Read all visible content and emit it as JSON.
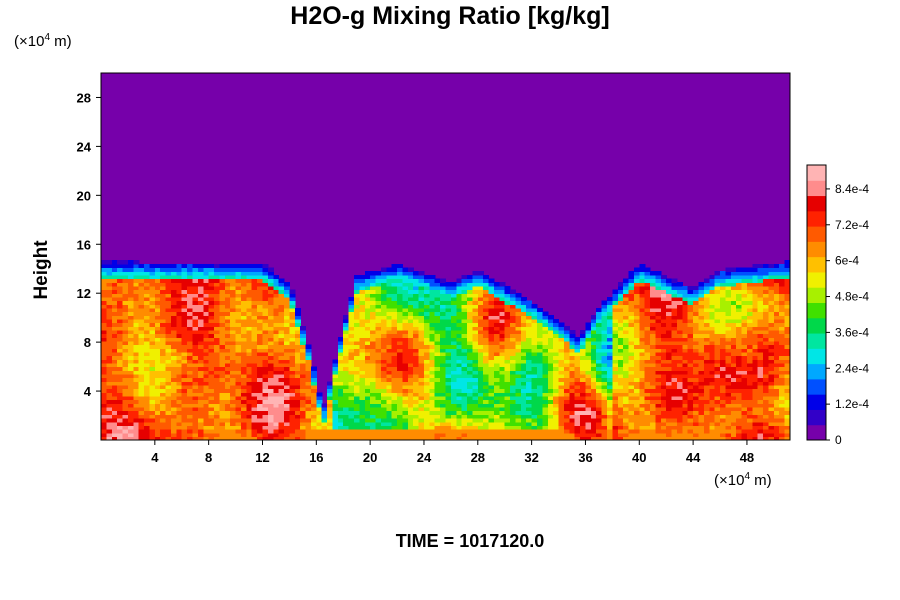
{
  "chart_data": {
    "type": "heatmap",
    "title": "H2O-g Mixing Ratio [kg/kg]",
    "ylabel": "Height",
    "y_unit": {
      "prefix": "(×10",
      "exp": "4",
      "suffix": " m)"
    },
    "x_unit": {
      "prefix": "(×10",
      "exp": "4",
      "suffix": " m)"
    },
    "xlim": [
      0,
      51.2
    ],
    "ylim": [
      0,
      30
    ],
    "x_ticks": [
      4,
      8,
      12,
      16,
      20,
      24,
      28,
      32,
      36,
      40,
      44,
      48
    ],
    "y_ticks": [
      4,
      8,
      12,
      16,
      20,
      24,
      28
    ],
    "field": {
      "value_range": [
        0,
        0.00092
      ],
      "background_value": 0,
      "layer_top_height": 14.2,
      "cloud_top_profile": [
        [
          0,
          14.2
        ],
        [
          12,
          14.0
        ],
        [
          14,
          12.5
        ],
        [
          15.5,
          7
        ],
        [
          16.5,
          2
        ],
        [
          18,
          9
        ],
        [
          19,
          13
        ],
        [
          22,
          14
        ],
        [
          26,
          12.5
        ],
        [
          28,
          13.5
        ],
        [
          32,
          11
        ],
        [
          34,
          9.5
        ],
        [
          35.5,
          8
        ],
        [
          37,
          10.5
        ],
        [
          40,
          14
        ],
        [
          44,
          12
        ],
        [
          46,
          13.5
        ],
        [
          51.2,
          14.2
        ]
      ]
    },
    "colorbar": {
      "labels": [
        "0",
        "1.2e-4",
        "2.4e-4",
        "3.6e-4",
        "4.8e-4",
        "6e-4",
        "7.2e-4",
        "8.4e-4"
      ],
      "label_values": [
        0,
        0.00012,
        0.00024,
        0.00036,
        0.00048,
        0.0006,
        0.00072,
        0.00084
      ],
      "min": 0,
      "max": 0.00092,
      "colors": [
        "#7600aa",
        "#3200c8",
        "#0000e8",
        "#0050ff",
        "#00a8ff",
        "#00e6e6",
        "#00e6a0",
        "#00d84a",
        "#40e000",
        "#a8f000",
        "#f0f000",
        "#ffc000",
        "#ff8c00",
        "#ff5a00",
        "#ff2200",
        "#e60000",
        "#ff8c8c",
        "#ffb4b4"
      ]
    },
    "annotation": "TIME = 1017120.0"
  }
}
